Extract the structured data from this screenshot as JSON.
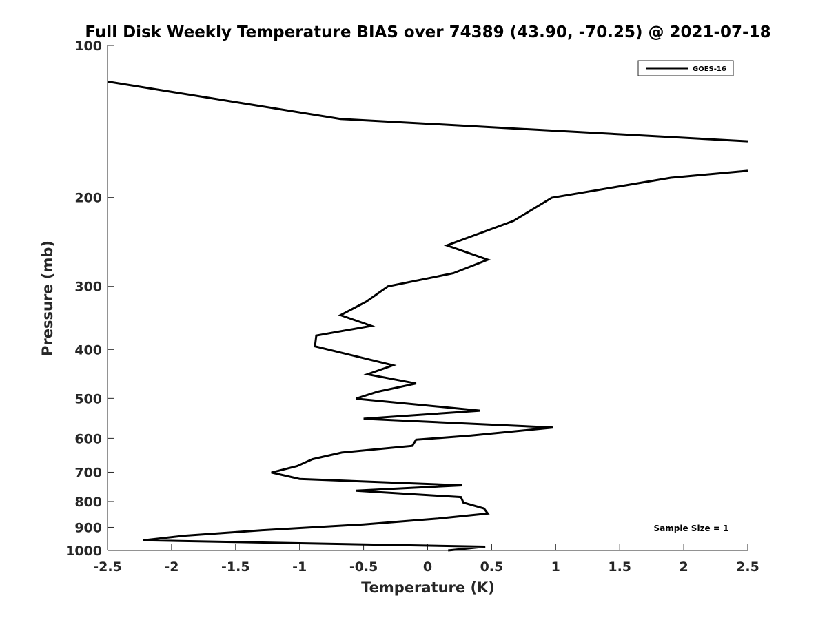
{
  "chart_data": {
    "type": "line",
    "title": "Full Disk Weekly Temperature BIAS over 74389 (43.90, -70.25) @ 2021-07-18",
    "xlabel": "Temperature (K)",
    "ylabel": "Pressure (mb)",
    "xlim": [
      -2.5,
      2.5
    ],
    "ylim": [
      100,
      1000
    ],
    "y_scale": "log",
    "y_reversed": true,
    "x_ticks": [
      {
        "value": -2.5,
        "label": "-2.5"
      },
      {
        "value": -2,
        "label": "-2"
      },
      {
        "value": -1.5,
        "label": "-1.5"
      },
      {
        "value": -1,
        "label": "-1"
      },
      {
        "value": -0.5,
        "label": "-0.5"
      },
      {
        "value": 0,
        "label": "0"
      },
      {
        "value": 0.5,
        "label": "0.5"
      },
      {
        "value": 1,
        "label": "1"
      },
      {
        "value": 1.5,
        "label": "1.5"
      },
      {
        "value": 2,
        "label": "2"
      },
      {
        "value": 2.5,
        "label": "2.5"
      }
    ],
    "y_ticks": [
      {
        "value": 100,
        "label": "100"
      },
      {
        "value": 200,
        "label": "200"
      },
      {
        "value": 300,
        "label": "300"
      },
      {
        "value": 400,
        "label": "400"
      },
      {
        "value": 500,
        "label": "500"
      },
      {
        "value": 600,
        "label": "600"
      },
      {
        "value": 700,
        "label": "700"
      },
      {
        "value": 800,
        "label": "800"
      },
      {
        "value": 900,
        "label": "900"
      },
      {
        "value": 1000,
        "label": "1000"
      }
    ],
    "grid": false,
    "legend_position": "top-right",
    "annotation": "Sample Size = 1",
    "series": [
      {
        "name": "GOES-16",
        "color": "#000000",
        "segments": [
          [
            [
              -2.5,
              117.9
            ],
            [
              -0.68,
              139.8
            ],
            [
              2.5,
              154.8
            ]
          ],
          [
            [
              2.5,
              177.1
            ],
            [
              1.9,
              182.8
            ],
            [
              0.97,
              200.2
            ],
            [
              0.67,
              222.5
            ],
            [
              0.15,
              248.8
            ],
            [
              0.47,
              265.6
            ],
            [
              0.2,
              282.5
            ],
            [
              -0.31,
              300.0
            ],
            [
              -0.48,
              321.7
            ],
            [
              -0.68,
              342.1
            ],
            [
              -0.44,
              359.1
            ],
            [
              -0.87,
              375.5
            ],
            [
              -0.88,
              394.2
            ],
            [
              -0.27,
              429.9
            ],
            [
              -0.47,
              447.9
            ],
            [
              -0.09,
              467.2
            ],
            [
              -0.39,
              484.9
            ],
            [
              -0.56,
              500.5
            ],
            [
              0.41,
              528.6
            ],
            [
              -0.5,
              548.6
            ],
            [
              0.98,
              571.0
            ],
            [
              0.34,
              592.3
            ],
            [
              -0.09,
              603.7
            ],
            [
              -0.12,
              620.8
            ],
            [
              -0.67,
              639.9
            ],
            [
              -0.9,
              659.8
            ],
            [
              -1.02,
              680.7
            ],
            [
              -1.22,
              701.0
            ],
            [
              -1.0,
              721.8
            ],
            [
              0.27,
              743.1
            ],
            [
              -0.56,
              761.4
            ],
            [
              0.26,
              784.1
            ],
            [
              0.28,
              804.0
            ],
            [
              0.44,
              826.0
            ],
            [
              0.47,
              845.0
            ],
            [
              0.08,
              865.0
            ],
            [
              -0.5,
              888.0
            ],
            [
              -1.3,
              912.0
            ],
            [
              -1.9,
              935.0
            ],
            [
              -2.22,
              955.0
            ],
            [
              0.45,
              983.0
            ],
            [
              0.16,
              1000.0
            ]
          ]
        ]
      }
    ]
  }
}
